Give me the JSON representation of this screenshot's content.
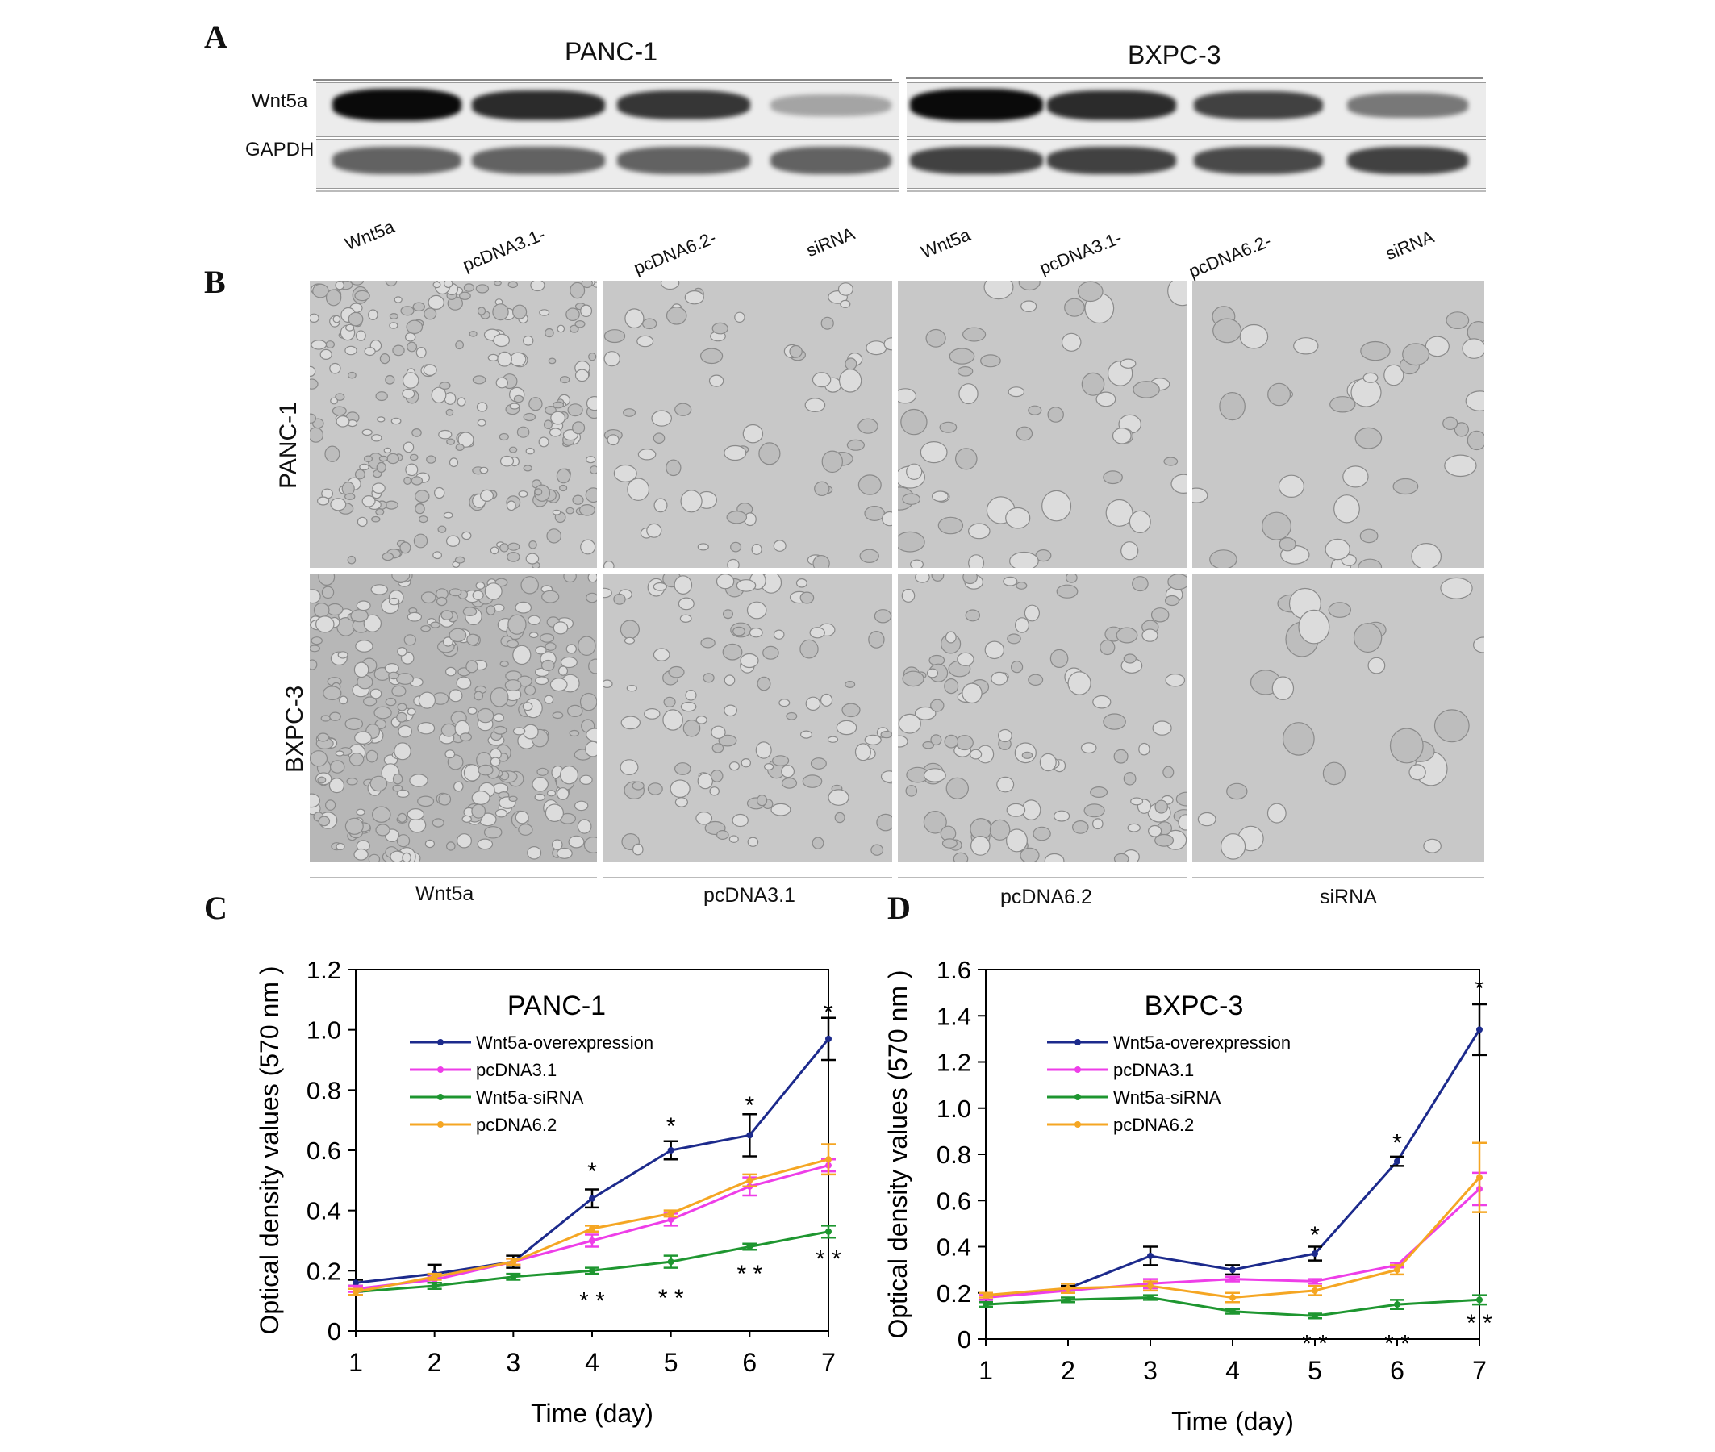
{
  "panels": {
    "a": "A",
    "b": "B",
    "c": "C",
    "d": "D"
  },
  "panel_a": {
    "cell_lines": [
      "PANC-1",
      "BXPC-3"
    ],
    "row_labels": [
      "Wnt5a",
      "GAPDH"
    ],
    "lane_labels": [
      "Wnt5a",
      "pcDNA3.1-",
      "pcDNA6.2-",
      "siRNA",
      "Wnt5a",
      "pcDNA3.1-",
      "pcDNA6.2-",
      "siRNA"
    ],
    "wnt5a_band_intensity": [
      1.0,
      0.85,
      0.8,
      0.3,
      1.0,
      0.85,
      0.75,
      0.5
    ],
    "gapdh_band_intensity": [
      0.8,
      0.8,
      0.8,
      0.8,
      1.0,
      1.0,
      0.95,
      1.0
    ]
  },
  "panel_b": {
    "row_labels": [
      "PANC-1",
      "BXPC-3"
    ],
    "column_labels": [
      "Wnt5a",
      "pcDNA3.1",
      "pcDNA6.2",
      "siRNA"
    ]
  },
  "chart_data": [
    {
      "type": "line",
      "title": "PANC-1",
      "xlabel": "Time (day)",
      "ylabel": "Optical density values (570 nm )",
      "x": [
        1,
        2,
        3,
        4,
        5,
        6,
        7
      ],
      "xlim": [
        1,
        7
      ],
      "ylim": [
        0,
        1.2
      ],
      "yticks": [
        "0",
        "0.2",
        "0.4",
        "0.6",
        "0.8",
        "1.0",
        "1.2"
      ],
      "legend_position": "top-left",
      "series": [
        {
          "name": "Wnt5a-overexpression",
          "color": "#1c2a8c",
          "values": [
            0.16,
            0.19,
            0.23,
            0.44,
            0.6,
            0.65,
            0.97
          ],
          "errors": [
            0.01,
            0.03,
            0.02,
            0.03,
            0.03,
            0.07,
            0.07
          ]
        },
        {
          "name": "pcDNA3.1",
          "color": "#ee3ee8",
          "values": [
            0.14,
            0.17,
            0.23,
            0.3,
            0.37,
            0.48,
            0.55
          ],
          "errors": [
            0.01,
            0.01,
            0.01,
            0.02,
            0.02,
            0.03,
            0.02
          ]
        },
        {
          "name": "Wnt5a-siRNA",
          "color": "#1e9630",
          "values": [
            0.13,
            0.15,
            0.18,
            0.2,
            0.23,
            0.28,
            0.33
          ],
          "errors": [
            0.01,
            0.01,
            0.01,
            0.01,
            0.02,
            0.01,
            0.02
          ]
        },
        {
          "name": "pcDNA6.2",
          "color": "#f5a623",
          "values": [
            0.13,
            0.18,
            0.23,
            0.34,
            0.39,
            0.5,
            0.57
          ],
          "errors": [
            0.01,
            0.01,
            0.01,
            0.01,
            0.01,
            0.02,
            0.05
          ]
        }
      ],
      "annotations": [
        {
          "x": 4,
          "y": 0.53,
          "text": "*"
        },
        {
          "x": 5,
          "y": 0.68,
          "text": "*"
        },
        {
          "x": 6,
          "y": 0.75,
          "text": "*"
        },
        {
          "x": 7,
          "y": 1.06,
          "text": "*"
        },
        {
          "x": 4,
          "y": 0.1,
          "text": "* *"
        },
        {
          "x": 5,
          "y": 0.11,
          "text": "* *"
        },
        {
          "x": 6,
          "y": 0.19,
          "text": "* *"
        },
        {
          "x": 7,
          "y": 0.24,
          "text": "* *"
        }
      ]
    },
    {
      "type": "line",
      "title": "BXPC-3",
      "xlabel": "Time (day)",
      "ylabel": "Optical density values (570 nm )",
      "x": [
        1,
        2,
        3,
        4,
        5,
        6,
        7
      ],
      "xlim": [
        1,
        7
      ],
      "ylim": [
        0,
        1.6
      ],
      "yticks": [
        "0",
        "0.2",
        "0.4",
        "0.6",
        "0.8",
        "1.0",
        "1.2",
        "1.4",
        "1.6"
      ],
      "legend_position": "top-left",
      "series": [
        {
          "name": "Wnt5a-overexpression",
          "color": "#1c2a8c",
          "values": [
            0.18,
            0.22,
            0.36,
            0.3,
            0.37,
            0.77,
            1.34
          ],
          "errors": [
            0.01,
            0.01,
            0.04,
            0.02,
            0.03,
            0.02,
            0.11
          ]
        },
        {
          "name": "pcDNA3.1",
          "color": "#ee3ee8",
          "values": [
            0.18,
            0.21,
            0.24,
            0.26,
            0.25,
            0.32,
            0.65
          ],
          "errors": [
            0.01,
            0.01,
            0.02,
            0.01,
            0.01,
            0.01,
            0.07
          ]
        },
        {
          "name": "Wnt5a-siRNA",
          "color": "#1e9630",
          "values": [
            0.15,
            0.17,
            0.18,
            0.12,
            0.1,
            0.15,
            0.17
          ],
          "errors": [
            0.01,
            0.01,
            0.01,
            0.01,
            0.01,
            0.02,
            0.02
          ]
        },
        {
          "name": "pcDNA6.2",
          "color": "#f5a623",
          "values": [
            0.19,
            0.22,
            0.23,
            0.18,
            0.21,
            0.3,
            0.7
          ],
          "errors": [
            0.01,
            0.02,
            0.02,
            0.02,
            0.02,
            0.02,
            0.15
          ]
        }
      ],
      "annotations": [
        {
          "x": 5,
          "y": 0.45,
          "text": "*"
        },
        {
          "x": 6,
          "y": 0.85,
          "text": "*"
        },
        {
          "x": 7,
          "y": 1.52,
          "text": "*"
        },
        {
          "x": 5,
          "y": -0.02,
          "text": "* *"
        },
        {
          "x": 6,
          "y": -0.02,
          "text": "* *"
        },
        {
          "x": 7,
          "y": 0.07,
          "text": "* *"
        }
      ]
    }
  ]
}
